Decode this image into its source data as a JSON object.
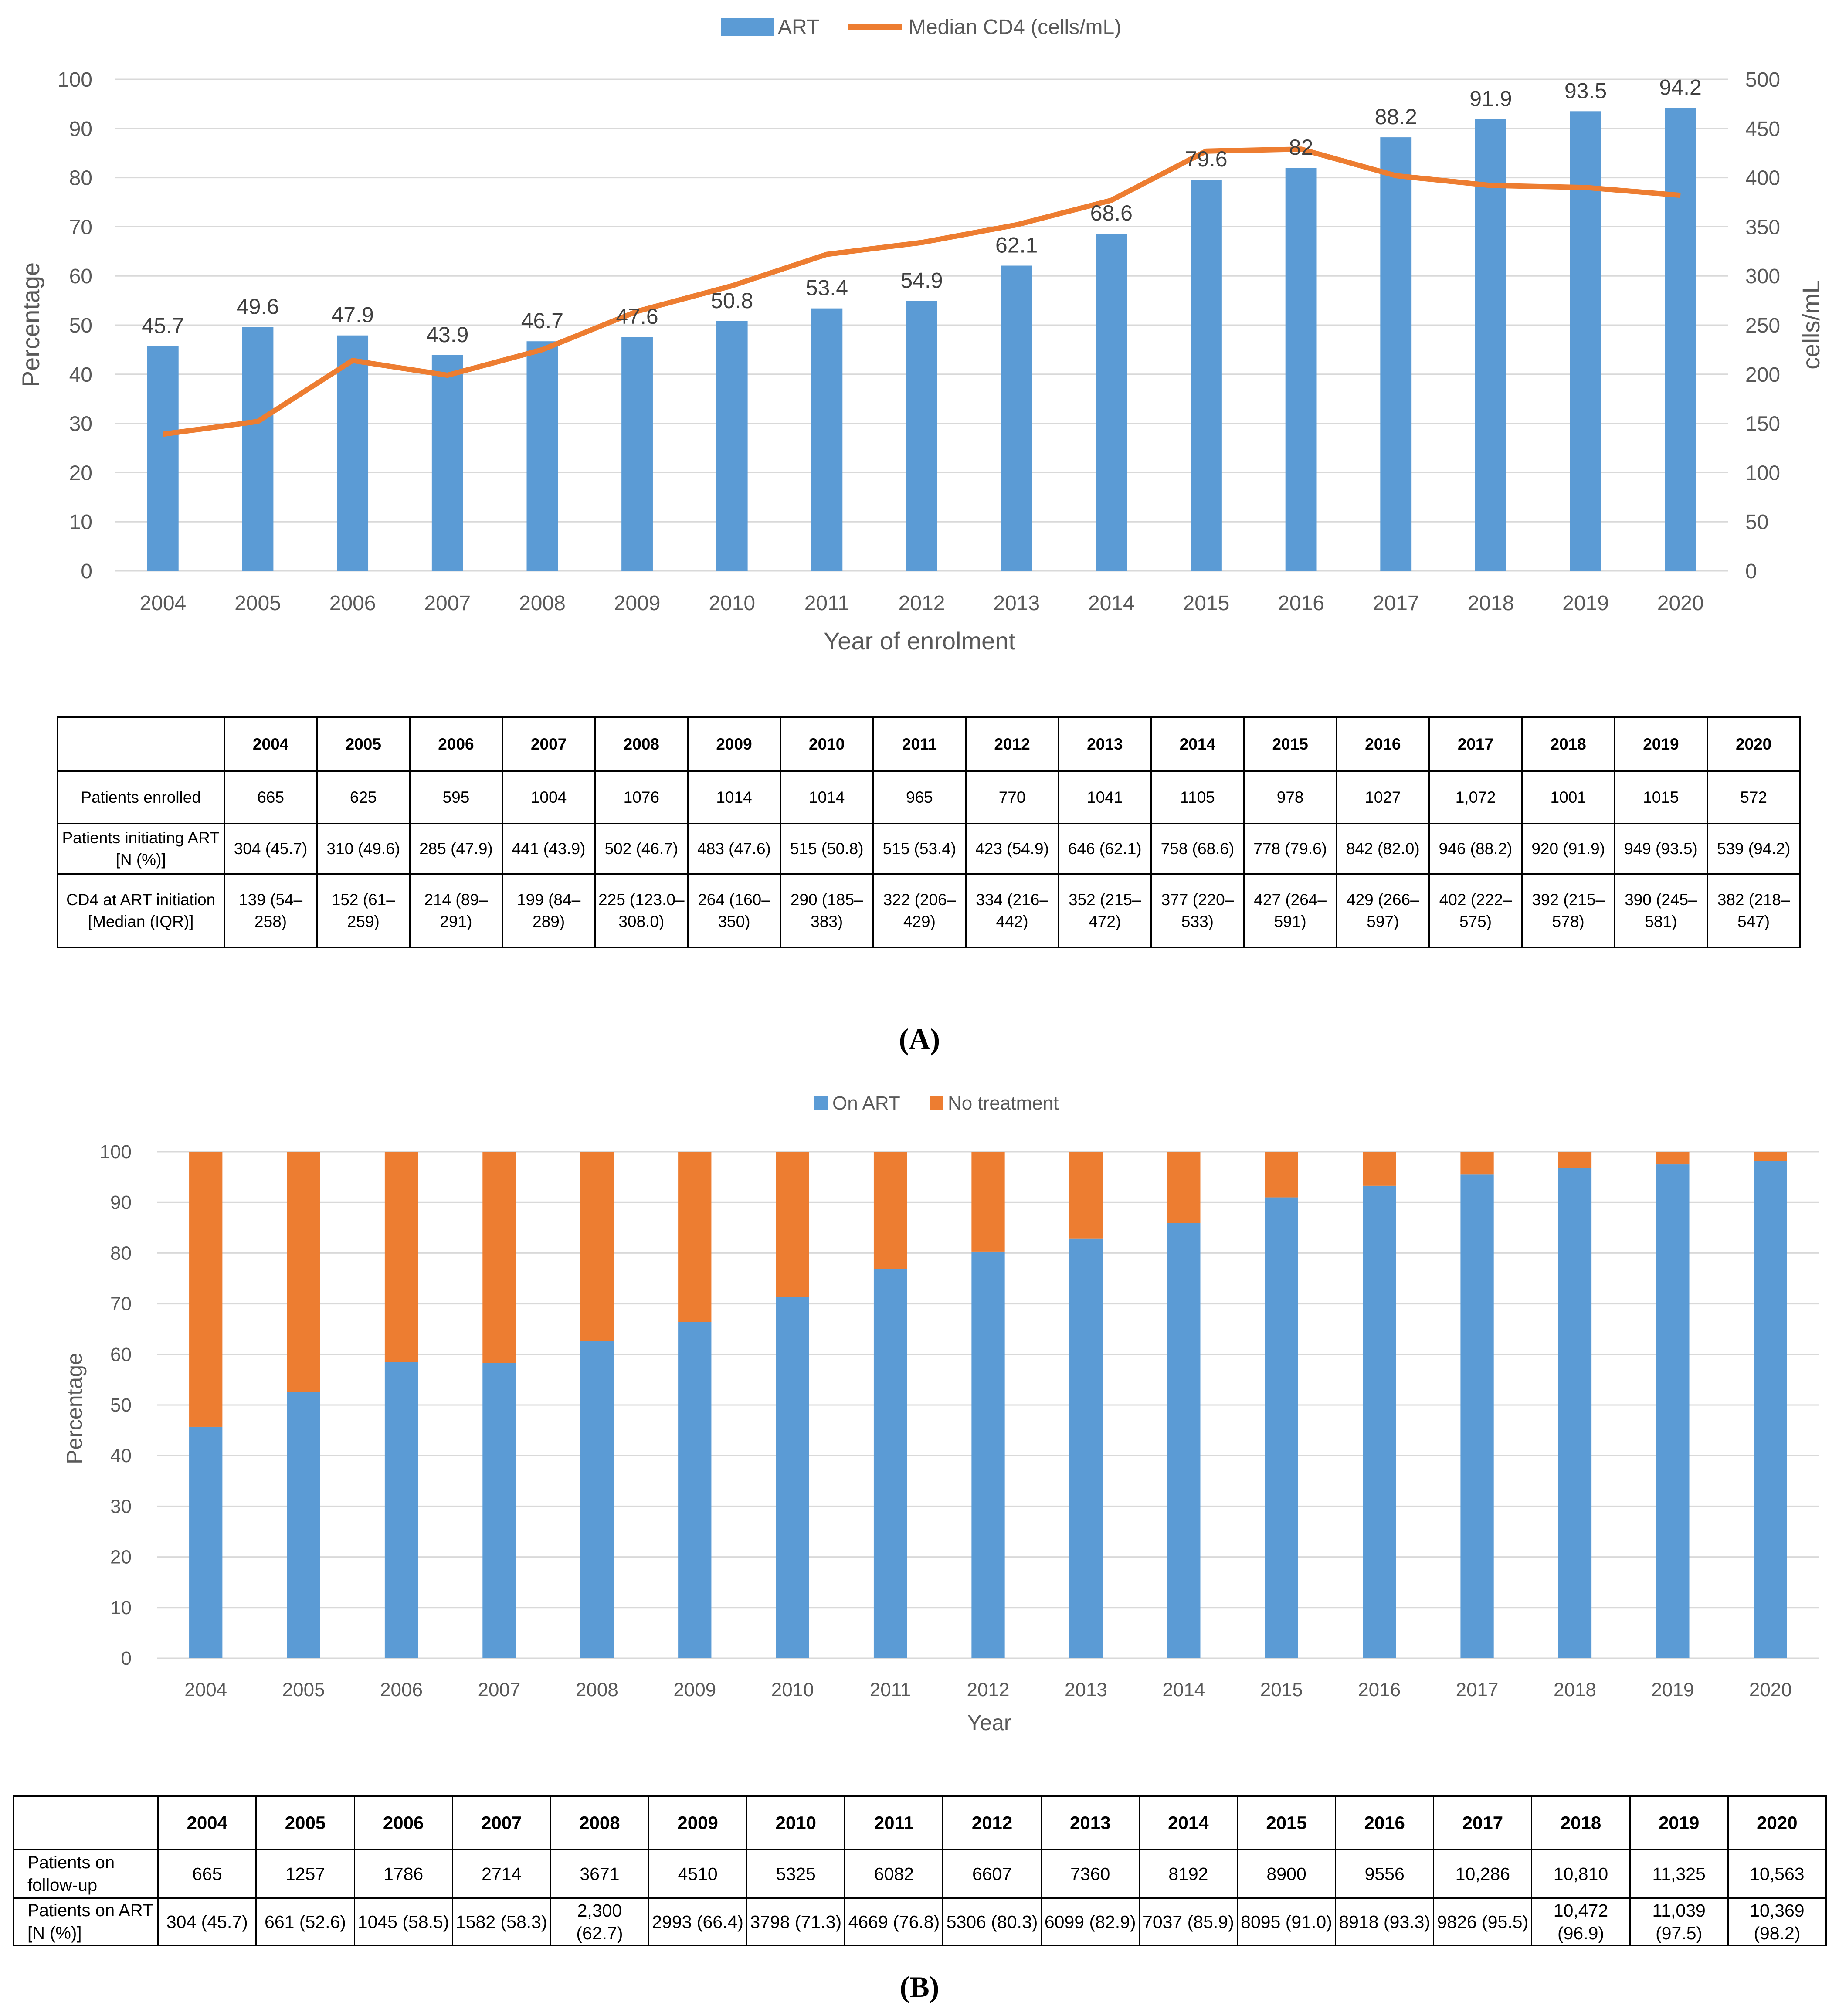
{
  "colors": {
    "blue": "#5b9bd5",
    "orange": "#ed7d31",
    "axis_text": "#595959",
    "grid": "#d9d9d9"
  },
  "chart_data": [
    {
      "type": "bar",
      "panel": "A",
      "title": "",
      "xlabel": "Year of enrolment",
      "ylabel": "Percentage",
      "y2label": "cells/mL",
      "ylim": [
        0,
        100
      ],
      "y2lim": [
        0,
        500
      ],
      "yticks": [
        "0",
        "10",
        "20",
        "30",
        "40",
        "50",
        "60",
        "70",
        "80",
        "90",
        "100"
      ],
      "y2ticks": [
        "0",
        "50",
        "100",
        "150",
        "200",
        "250",
        "300",
        "350",
        "400",
        "450",
        "500"
      ],
      "legend": [
        "ART",
        "Median CD4 (cells/mL)"
      ],
      "legend_position": "top",
      "categories": [
        "2004",
        "2005",
        "2006",
        "2007",
        "2008",
        "2009",
        "2010",
        "2011",
        "2012",
        "2013",
        "2014",
        "2015",
        "2016",
        "2017",
        "2018",
        "2019",
        "2020"
      ],
      "series": [
        {
          "name": "ART",
          "type": "bar",
          "axis": "left",
          "values": [
            45.7,
            49.6,
            47.9,
            43.9,
            46.7,
            47.6,
            50.8,
            53.4,
            54.9,
            62.1,
            68.6,
            79.6,
            82,
            88.2,
            91.9,
            93.5,
            94.2
          ],
          "labels": [
            "45.7",
            "49.6",
            "47.9",
            "43.9",
            "46.7",
            "47.6",
            "50.8",
            "53.4",
            "54.9",
            "62.1",
            "68.6",
            "79.6",
            "82",
            "88.2",
            "91.9",
            "93.5",
            "94.2"
          ]
        },
        {
          "name": "Median CD4 (cells/mL)",
          "type": "line",
          "axis": "right",
          "values": [
            139,
            152,
            214,
            199,
            225,
            264,
            290,
            322,
            334,
            352,
            377,
            427,
            429,
            402,
            392,
            390,
            382
          ]
        }
      ]
    },
    {
      "type": "bar",
      "stacked": true,
      "panel": "B",
      "title": "",
      "xlabel": "Year",
      "ylabel": "Percentage",
      "ylim": [
        0,
        100
      ],
      "yticks": [
        "0",
        "10",
        "20",
        "30",
        "40",
        "50",
        "60",
        "70",
        "80",
        "90",
        "100"
      ],
      "legend": [
        "On ART",
        "No treatment"
      ],
      "legend_position": "top",
      "categories": [
        "2004",
        "2005",
        "2006",
        "2007",
        "2008",
        "2009",
        "2010",
        "2011",
        "2012",
        "2013",
        "2014",
        "2015",
        "2016",
        "2017",
        "2018",
        "2019",
        "2020"
      ],
      "series": [
        {
          "name": "On ART",
          "values": [
            45.7,
            52.6,
            58.5,
            58.3,
            62.7,
            66.4,
            71.3,
            76.8,
            80.3,
            82.9,
            85.9,
            91.0,
            93.3,
            95.5,
            96.9,
            97.5,
            98.2
          ]
        },
        {
          "name": "No treatment",
          "values": [
            54.3,
            47.4,
            41.5,
            41.7,
            37.3,
            33.6,
            28.7,
            23.2,
            19.7,
            17.1,
            14.1,
            9.0,
            6.7,
            4.5,
            3.1,
            2.5,
            1.8
          ]
        }
      ]
    }
  ],
  "tableA": {
    "headers": [
      "",
      "2004",
      "2005",
      "2006",
      "2007",
      "2008",
      "2009",
      "2010",
      "2011",
      "2012",
      "2013",
      "2014",
      "2015",
      "2016",
      "2017",
      "2018",
      "2019",
      "2020"
    ],
    "rows": [
      [
        "Patients enrolled",
        "665",
        "625",
        "595",
        "1004",
        "1076",
        "1014",
        "1014",
        "965",
        "770",
        "1041",
        "1105",
        "978",
        "1027",
        "1,072",
        "1001",
        "1015",
        "572"
      ],
      [
        "Patients initiating ART [N (%)]",
        "304 (45.7)",
        "310 (49.6)",
        "285 (47.9)",
        "441 (43.9)",
        "502 (46.7)",
        "483 (47.6)",
        "515 (50.8)",
        "515 (53.4)",
        "423 (54.9)",
        "646 (62.1)",
        "758 (68.6)",
        "778 (79.6)",
        "842 (82.0)",
        "946 (88.2)",
        "920 (91.9)",
        "949 (93.5)",
        "539 (94.2)"
      ],
      [
        "CD4 at ART initiation [Median (IQR)]",
        "139 (54–258)",
        "152 (61–259)",
        "214 (89–291)",
        "199 (84–289)",
        "225 (123.0–308.0)",
        "264 (160–350)",
        "290 (185–383)",
        "322 (206–429)",
        "334 (216–442)",
        "352 (215–472)",
        "377 (220–533)",
        "427 (264–591)",
        "429 (266–597)",
        "402 (222–575)",
        "392 (215–578)",
        "390 (245–581)",
        "382 (218–547)"
      ]
    ]
  },
  "tableB": {
    "headers": [
      "",
      "2004",
      "2005",
      "2006",
      "2007",
      "2008",
      "2009",
      "2010",
      "2011",
      "2012",
      "2013",
      "2014",
      "2015",
      "2016",
      "2017",
      "2018",
      "2019",
      "2020"
    ],
    "rows": [
      [
        "Patients on follow-up",
        "665",
        "1257",
        "1786",
        "2714",
        "3671",
        "4510",
        "5325",
        "6082",
        "6607",
        "7360",
        "8192",
        "8900",
        "9556",
        "10,286",
        "10,810",
        "11,325",
        "10,563"
      ],
      [
        "Patients on ART [N (%)]",
        "304 (45.7)",
        "661 (52.6)",
        "1045 (58.5)",
        "1582 (58.3)",
        "2,300 (62.7)",
        "2993 (66.4)",
        "3798 (71.3)",
        "4669 (76.8)",
        "5306 (80.3)",
        "6099 (82.9)",
        "7037 (85.9)",
        "8095 (91.0)",
        "8918 (93.3)",
        "9826 (95.5)",
        "10,472 (96.9)",
        "11,039 (97.5)",
        "10,369 (98.2)"
      ]
    ]
  },
  "panel_labels": {
    "a": "(A)",
    "b": "(B)"
  }
}
